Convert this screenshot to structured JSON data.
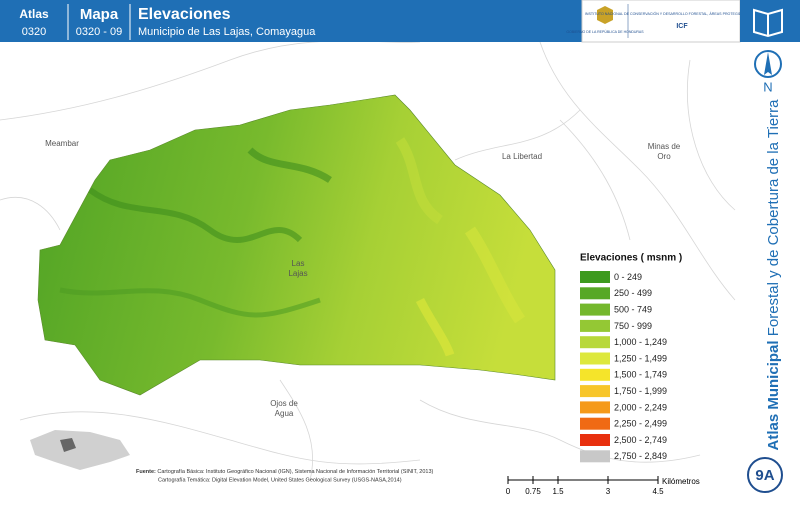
{
  "header": {
    "atlas_label": "Atlas",
    "atlas_code": "0320",
    "map_label": "Mapa",
    "map_code": "0320 - 09",
    "title": "Elevaciones",
    "subtitle": "Municipio de Las Lajas, Comayagua"
  },
  "logos": {
    "government": "GOBIERNO DE LA REPÚBLICA DE HONDURAS",
    "institute": "INSTITUTO NACIONAL DE CONSERVACIÓN Y DESARROLLO FORESTAL, ÁREAS PROTEGIDAS Y VIDA SILVESTRE",
    "acronym": "ICF"
  },
  "side": {
    "north": "N",
    "atlas_bold": "Atlas Municipal",
    "atlas_rest": "Forestal y de Cobertura de la Tierra",
    "sheet": "9A"
  },
  "places": [
    "Meambar",
    "La Libertad",
    "Minas de Oro",
    "Las Lajas",
    "Ojos de Agua"
  ],
  "legend": {
    "title": "Elevaciones ( msnm )",
    "items": [
      {
        "label": "0 - 249",
        "color": "#3d9a1e"
      },
      {
        "label": "250 - 499",
        "color": "#57a826"
      },
      {
        "label": "500 - 749",
        "color": "#74b82c"
      },
      {
        "label": "750 - 999",
        "color": "#94c834"
      },
      {
        "label": "1,000 - 1,249",
        "color": "#b8d83a"
      },
      {
        "label": "1,250 - 1,499",
        "color": "#dde83c"
      },
      {
        "label": "1,500 - 1,749",
        "color": "#f5e42a"
      },
      {
        "label": "1,750 - 1,999",
        "color": "#f7c62a"
      },
      {
        "label": "2,000 - 2,249",
        "color": "#f59a1a"
      },
      {
        "label": "2,250 - 2,499",
        "color": "#f06a14"
      },
      {
        "label": "2,500 - 2,749",
        "color": "#e8300e"
      },
      {
        "label": "2,750 - 2,849",
        "color": "#c8c8c8"
      }
    ]
  },
  "scale": {
    "ticks": [
      0,
      0.75,
      1.5,
      3,
      4.5
    ],
    "unit": "Kilómetros"
  },
  "source": {
    "label": "Fuente:",
    "line1": "Cartografía Básica: Instituto Geográfico Nacional (IGN), Sistema Nacional de Información Territorial (SINIT, 2013)",
    "line2": "Cartografía Temática: Digital Elevation Model, United States Geological Survey (USGS-NASA,2014)"
  }
}
